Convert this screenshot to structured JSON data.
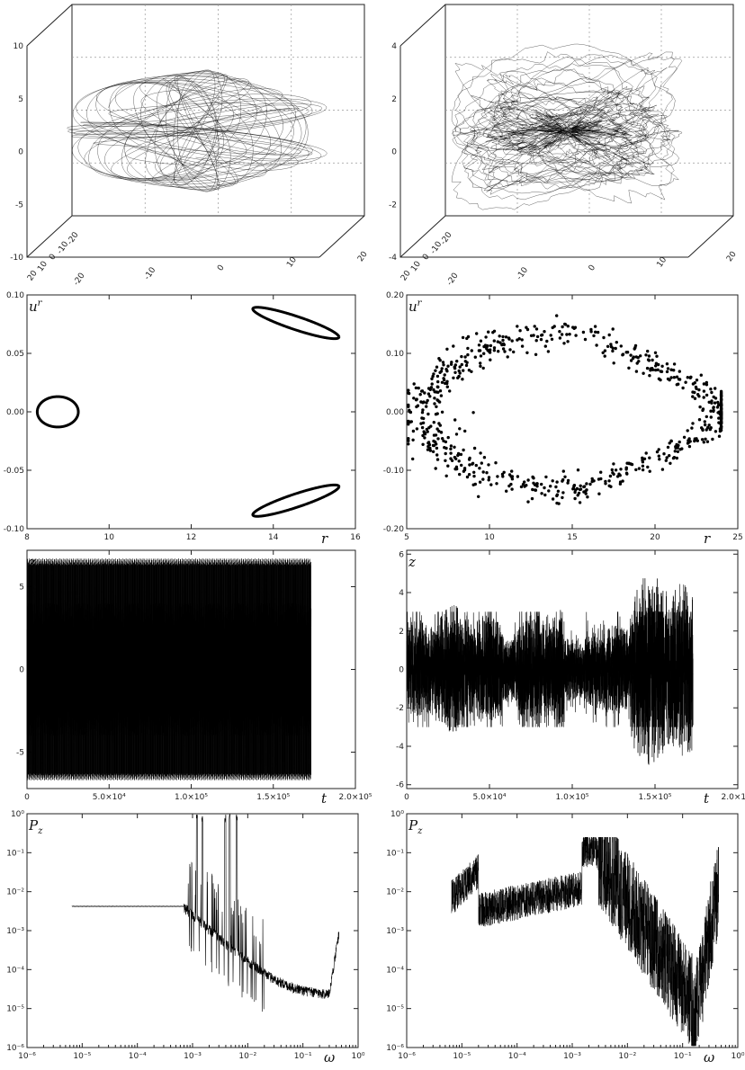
{
  "chart_data": [
    {
      "id": "orbit3d_left",
      "type": "line",
      "projection": "3d",
      "grid": true,
      "z_ticks": [
        "10",
        "5",
        "0",
        "-5",
        "-10"
      ],
      "x_ticks": [
        "20",
        "10",
        "0",
        "-10",
        "-20"
      ],
      "y_ticks": [
        "-20",
        "-10",
        "0",
        "10",
        "20"
      ],
      "zlim": [
        -10,
        10
      ]
    },
    {
      "id": "orbit3d_right",
      "type": "line",
      "projection": "3d",
      "grid": true,
      "z_ticks": [
        "4",
        "2",
        "0",
        "-2",
        "-4"
      ],
      "x_ticks": [
        "20",
        "10",
        "0",
        "-10",
        "-20"
      ],
      "y_ticks": [
        "-20",
        "-10",
        "0",
        "10",
        "20"
      ],
      "zlim": [
        -4,
        4
      ]
    },
    {
      "id": "section_left",
      "type": "scatter",
      "xlabel": "r",
      "ylabel": "u^r",
      "xlim": [
        8,
        16
      ],
      "ylim": [
        -0.1,
        0.1
      ],
      "x_ticks": [
        "8",
        "10",
        "12",
        "14",
        "16"
      ],
      "y_ticks": [
        "0.10",
        "0.05",
        "0.00",
        "-0.05",
        "-0.10"
      ],
      "islands": [
        {
          "cx": 8.75,
          "cy": 0.0,
          "rx": 0.5,
          "ry": 0.013,
          "tilt": 0
        },
        {
          "cx": 14.55,
          "cy": 0.076,
          "rx": 1.05,
          "ry": 0.006,
          "tilt": -0.012
        },
        {
          "cx": 14.55,
          "cy": -0.076,
          "rx": 1.05,
          "ry": 0.006,
          "tilt": 0.012
        }
      ]
    },
    {
      "id": "section_right",
      "type": "scatter",
      "xlabel": "r",
      "ylabel": "u^r",
      "xlim": [
        5,
        25
      ],
      "ylim": [
        -0.2,
        0.2
      ],
      "x_ticks": [
        "5",
        "10",
        "15",
        "20",
        "25"
      ],
      "y_ticks": [
        "0.20",
        "0.10",
        "0.00",
        "-0.10",
        "-0.20"
      ]
    },
    {
      "id": "timeseries_left",
      "type": "line",
      "xlabel": "t",
      "ylabel": "z",
      "xlim": [
        0,
        200000
      ],
      "ylim": [
        -7.2,
        7.2
      ],
      "t_end": 173000,
      "x_ticks": [
        "0",
        "5.0×10⁴",
        "1.0×10⁵",
        "1.5×10⁵",
        "2.0×10⁵"
      ],
      "y_ticks": [
        "5",
        "0",
        "-5"
      ],
      "envelope": {
        "outer": 6.7,
        "inner": 4.0
      }
    },
    {
      "id": "timeseries_right",
      "type": "line",
      "xlabel": "t",
      "ylabel": "z",
      "xlim": [
        0,
        200000
      ],
      "ylim": [
        -6.2,
        6.2
      ],
      "t_end": 173000,
      "x_ticks": [
        "0",
        "5.0×10⁴",
        "1.0×10⁵",
        "1.5×10⁵",
        "2.0×10⁵"
      ],
      "y_ticks": [
        "6",
        "4",
        "2",
        "0",
        "-2",
        "-4",
        "-6"
      ]
    },
    {
      "id": "spectrum_left",
      "type": "line",
      "scale": "log-log",
      "xlabel": "ω",
      "ylabel": "P_z",
      "xlim": [
        1e-06,
        1
      ],
      "ylim": [
        1e-06,
        1
      ],
      "x_ticks": [
        "10⁻⁶",
        "10⁻⁵",
        "10⁻⁴",
        "10⁻³",
        "10⁻²",
        "10⁻¹",
        "10⁰"
      ],
      "y_ticks": [
        "10⁰",
        "10⁻¹",
        "10⁻²",
        "10⁻³",
        "10⁻⁴",
        "10⁻⁵",
        "10⁻⁶"
      ]
    },
    {
      "id": "spectrum_right",
      "type": "line",
      "scale": "log-log",
      "xlabel": "ω",
      "ylabel": "P_z",
      "xlim": [
        1e-06,
        1
      ],
      "ylim": [
        1e-06,
        1
      ],
      "x_ticks": [
        "10⁻⁶",
        "10⁻⁵",
        "10⁻⁴",
        "10⁻³",
        "10⁻²",
        "10⁻¹",
        "10⁰"
      ],
      "y_ticks": [
        "10⁰",
        "10⁻¹",
        "10⁻²",
        "10⁻³",
        "10⁻⁴",
        "10⁻⁵",
        "10⁻⁶"
      ]
    }
  ]
}
